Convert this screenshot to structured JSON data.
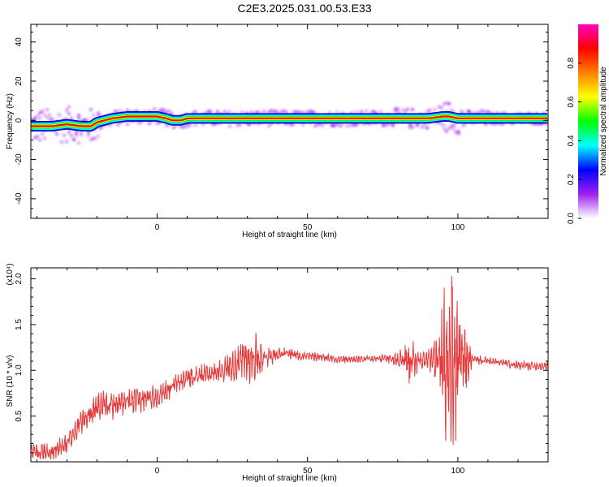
{
  "page_title": "C2E3.2025.031.00.53.E33",
  "chart_data": [
    {
      "type": "heatmap",
      "title": "C2E3.2025.031.00.53.E33",
      "xlabel": "Height of straight line (km)",
      "ylabel": "Frequency (Hz)",
      "xlim": [
        -42,
        130
      ],
      "ylim": [
        -50,
        49
      ],
      "x_ticks": [
        0,
        50,
        100
      ],
      "y_ticks": [
        -40,
        -20,
        0,
        20,
        40
      ],
      "colorbar": {
        "label": "Normalized spectral amplitude",
        "range": [
          0.0,
          1.0
        ],
        "ticks": [
          0.0,
          0.2,
          0.4,
          0.6,
          0.8
        ],
        "tick_labels": [
          "0.0",
          "0.2",
          "0.4",
          "0.6",
          "0.8"
        ],
        "colormap": [
          "#ffffff",
          "#a020f0",
          "#0000ff",
          "#00ffff",
          "#00ff00",
          "#ffff00",
          "#ff8000",
          "#ff0000",
          "#ff00c0"
        ]
      },
      "ridge": {
        "x": [
          -42,
          -35,
          -30,
          -25,
          -22,
          -20,
          -15,
          -10,
          0,
          3,
          5,
          8,
          10,
          20,
          30,
          40,
          50,
          60,
          70,
          80,
          85,
          90,
          95,
          97,
          100,
          110,
          120,
          130
        ],
        "y": [
          -3,
          -3,
          -2,
          -3,
          -3,
          -1,
          1,
          2,
          2,
          1,
          0,
          0,
          1,
          1,
          1,
          1,
          1,
          1,
          1,
          1,
          1,
          1,
          2,
          2,
          1,
          1,
          1,
          1
        ]
      }
    },
    {
      "type": "line",
      "xlabel": "Height of straight line (km)",
      "ylabel": "SNR (10 * v/v)",
      "y_multiplier": "(x10⁴)",
      "xlim": [
        -42,
        130
      ],
      "ylim": [
        0.0,
        2.12
      ],
      "x_ticks": [
        0,
        50,
        100
      ],
      "y_ticks": [
        0.5,
        1.0,
        1.5,
        2.0
      ],
      "y_tick_labels": [
        "0.5",
        "1.0",
        "1.5",
        "2.0"
      ],
      "color": "#e8393a",
      "trend": {
        "x": [
          -42,
          -35,
          -30,
          -25,
          -20,
          -15,
          -10,
          -5,
          0,
          5,
          10,
          15,
          20,
          25,
          30,
          35,
          40,
          45,
          50,
          55,
          60,
          65,
          70,
          75,
          80,
          85,
          90,
          95,
          98,
          100,
          102,
          105,
          110,
          115,
          120,
          125,
          130
        ],
        "y": [
          0.12,
          0.1,
          0.2,
          0.45,
          0.6,
          0.62,
          0.65,
          0.68,
          0.72,
          0.82,
          0.92,
          0.95,
          0.98,
          1.05,
          1.12,
          1.15,
          1.18,
          1.18,
          1.15,
          1.15,
          1.12,
          1.12,
          1.12,
          1.13,
          1.12,
          1.1,
          1.12,
          1.1,
          1.1,
          1.05,
          1.1,
          1.12,
          1.1,
          1.08,
          1.05,
          1.05,
          1.05
        ]
      },
      "noise_amplitude": {
        "x": [
          -42,
          -30,
          -20,
          0,
          20,
          27,
          30,
          32,
          35,
          40,
          50,
          60,
          75,
          80,
          84,
          87,
          90,
          94,
          96,
          98,
          100,
          102,
          105,
          110,
          130
        ],
        "y": [
          0.08,
          0.12,
          0.15,
          0.12,
          0.1,
          0.18,
          0.28,
          0.3,
          0.15,
          0.07,
          0.05,
          0.04,
          0.04,
          0.1,
          0.28,
          0.1,
          0.1,
          0.35,
          0.85,
          1.0,
          0.8,
          0.45,
          0.05,
          0.04,
          0.05
        ]
      }
    }
  ]
}
